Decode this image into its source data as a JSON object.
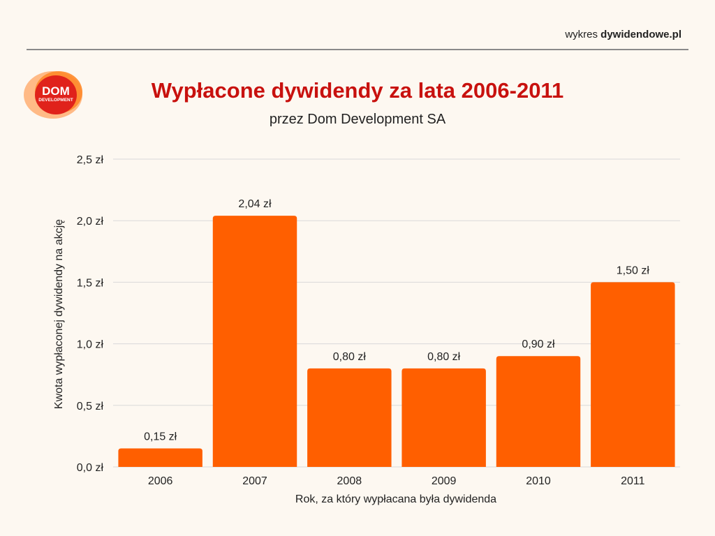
{
  "header": {
    "brand_prefix": "wykres",
    "brand_name": "dywidendowe.pl"
  },
  "logo": {
    "line1": "DOM",
    "line2": "DEVELOPMENT"
  },
  "chart_data": {
    "type": "bar",
    "title": "Wypłacone dywidendy za lata 2006-2011",
    "subtitle": "przez Dom Development SA",
    "xlabel": "Rok, za który wypłacana była dywidenda",
    "ylabel": "Kwota wypłaconej dywidendy na akcję",
    "categories": [
      "2006",
      "2007",
      "2008",
      "2009",
      "2010",
      "2011"
    ],
    "values": [
      0.15,
      2.04,
      0.8,
      0.8,
      0.9,
      1.5
    ],
    "data_labels": [
      "0,15 zł",
      "2,04 zł",
      "0,80 zł",
      "0,80 zł",
      "0,90 zł",
      "1,50 zł"
    ],
    "ylim": [
      0,
      2.5
    ],
    "yticks": [
      0,
      0.5,
      1.0,
      1.5,
      2.0,
      2.5
    ],
    "ytick_labels": [
      "0,0 zł",
      "0,5 zł",
      "1,0 zł",
      "1,5 zł",
      "2,0 zł",
      "2,5 zł"
    ],
    "grid": true,
    "colors": {
      "bar": "#ff5f00",
      "title": "#c8110e",
      "grid": "#d9d9d9"
    }
  }
}
